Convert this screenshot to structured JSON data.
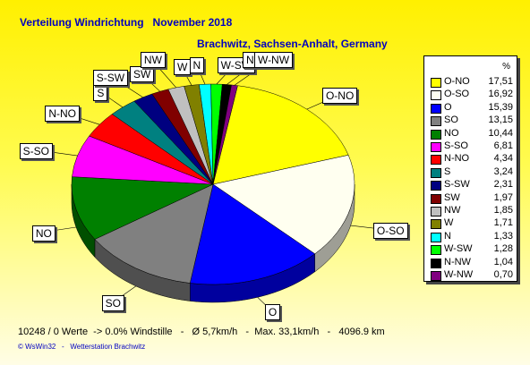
{
  "title": "Verteilung Windrichtung   November 2018",
  "subtitle": "Brachwitz, Sachsen-Anhalt, Germany",
  "legend_header": "%",
  "footer": "10248 / 0 Werte  -> 0.0% Windstille   -   Ø 5,7km/h   -  Max. 33,1km/h   -   4096.9 km",
  "copyright": "© WsWin32   -   Wetterstation Brachwitz",
  "chart_data": {
    "type": "pie",
    "categories": [
      "O-NO",
      "O-SO",
      "O",
      "SO",
      "NO",
      "S-SO",
      "N-NO",
      "S",
      "S-SW",
      "SW",
      "NW",
      "W",
      "N",
      "W-SW",
      "N-NW",
      "W-NW"
    ],
    "values": [
      17.51,
      16.92,
      15.39,
      13.15,
      10.44,
      6.81,
      4.34,
      3.24,
      2.31,
      1.97,
      1.85,
      1.71,
      1.33,
      1.28,
      1.04,
      0.7
    ],
    "value_labels": [
      "17,51",
      "16,92",
      "15,39",
      "13,15",
      "10,44",
      "6,81",
      "4,34",
      "3,24",
      "2,31",
      "1,97",
      "1,85",
      "1,71",
      "1,33",
      "1,28",
      "1,04",
      "0,70"
    ],
    "colors": [
      "#ffff00",
      "#fffff0",
      "#0000ff",
      "#808080",
      "#008000",
      "#ff00ff",
      "#ff0000",
      "#008080",
      "#000080",
      "#800000",
      "#c0c0c0",
      "#808000",
      "#00ffff",
      "#00ff00",
      "#000000",
      "#800080"
    ],
    "legend_position": "right",
    "style": "3d"
  }
}
